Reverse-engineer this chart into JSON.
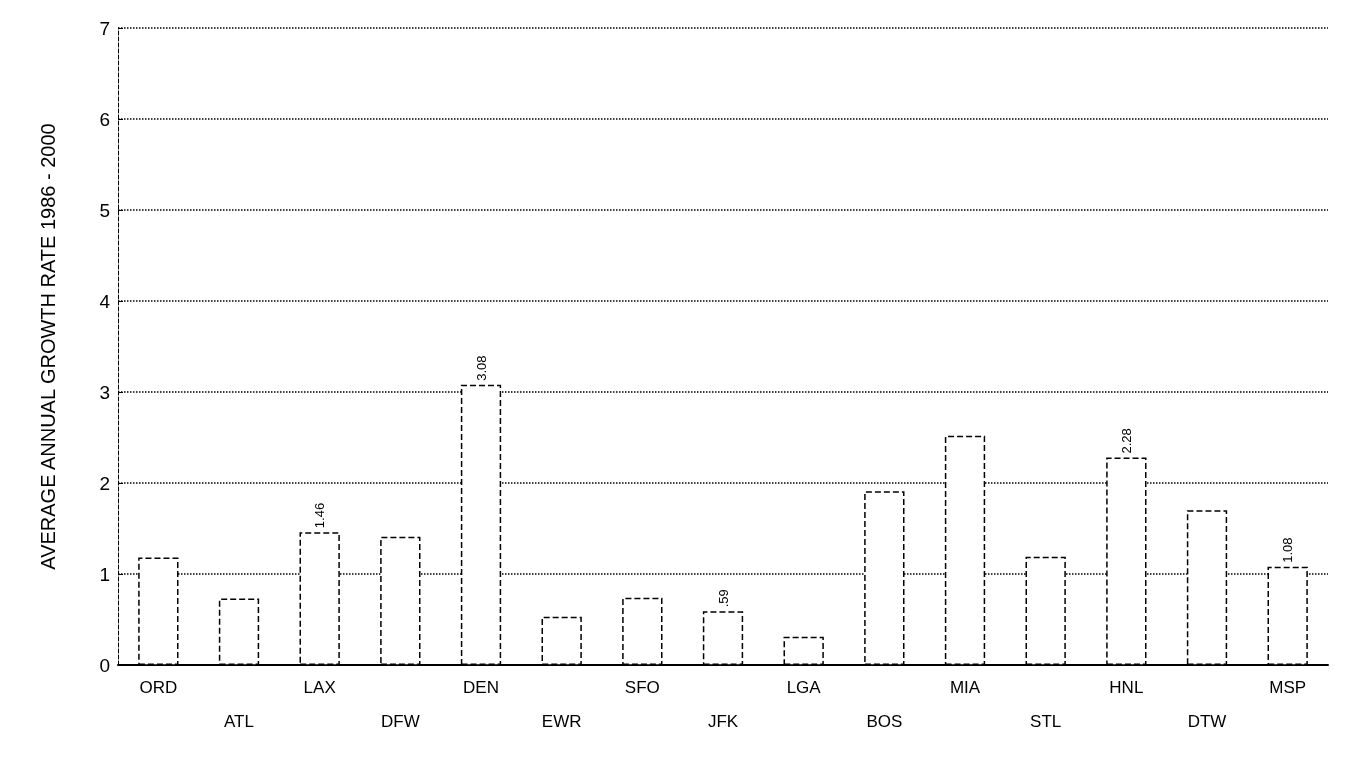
{
  "chart_data": {
    "type": "bar",
    "ylabel": "AVERAGE ANNUAL GROWTH RATE 1986 - 2000",
    "categories": [
      "ORD",
      "ATL",
      "LAX",
      "DFW",
      "DEN",
      "EWR",
      "SFO",
      "JFK",
      "LGA",
      "BOS",
      "MIA",
      "STL",
      "HNL",
      "DTW",
      "MSP"
    ],
    "values": [
      1.18,
      0.73,
      1.46,
      1.41,
      3.08,
      0.53,
      0.74,
      0.59,
      0.31,
      1.91,
      2.52,
      1.19,
      2.28,
      1.7,
      1.08
    ],
    "value_labels": [
      null,
      null,
      "1.46",
      null,
      "3.08",
      null,
      null,
      ".59",
      null,
      null,
      null,
      null,
      "2.28",
      null,
      "1.08"
    ],
    "color": "#000000",
    "ylim": [
      0,
      7
    ],
    "yticks": [
      0,
      1,
      2,
      3,
      4,
      5,
      6,
      7
    ],
    "grid": "y"
  }
}
